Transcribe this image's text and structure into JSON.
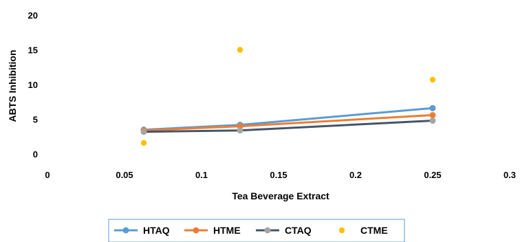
{
  "chart_data": {
    "type": "line",
    "xlabel": "Tea Beverage Extract",
    "ylabel": "ABTS Inhibition",
    "xlim": [
      0,
      0.3
    ],
    "ylim": [
      0,
      20
    ],
    "x_ticks": [
      0,
      0.05,
      0.1,
      0.15,
      0.2,
      0.25,
      0.3
    ],
    "x_tick_labels": [
      "0",
      "0.05",
      "0.1",
      "0.15",
      "0.2",
      "0.25",
      "0.3"
    ],
    "y_ticks": [
      0,
      5,
      10,
      15,
      20
    ],
    "y_tick_labels": [
      "0",
      "5",
      "10",
      "15",
      "20"
    ],
    "grid": false,
    "legend_position": "bottom",
    "series": [
      {
        "name": "HTAQ",
        "style": "line",
        "color": "#5B9BD5",
        "x": [
          0.0625,
          0.125,
          0.25
        ],
        "y": [
          3.5,
          4.2,
          6.6
        ]
      },
      {
        "name": "HTME",
        "style": "line",
        "color": "#ED7D31",
        "x": [
          0.0625,
          0.125,
          0.25
        ],
        "y": [
          3.4,
          4.0,
          5.6
        ]
      },
      {
        "name": "CTAQ",
        "style": "line",
        "color": "#A5A5A5",
        "line_color": "#44546A",
        "x": [
          0.0625,
          0.125,
          0.25
        ],
        "y": [
          3.2,
          3.4,
          4.8
        ]
      },
      {
        "name": "CTME",
        "style": "scatter",
        "color": "#FFC000",
        "x": [
          0.0625,
          0.125,
          0.25
        ],
        "y": [
          1.6,
          15.0,
          10.7
        ]
      }
    ]
  }
}
